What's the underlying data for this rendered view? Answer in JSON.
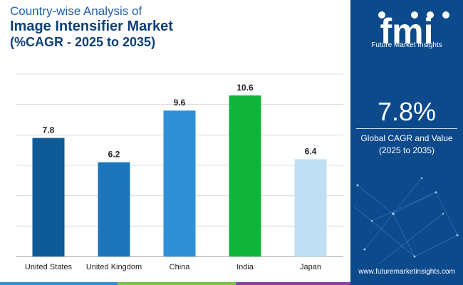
{
  "title": {
    "line1": "Country-wise Analysis of",
    "line2": "Image Intensifier Market",
    "line3": "(%CAGR - 2025 to 2035)"
  },
  "chart_data": {
    "type": "bar",
    "categories": [
      "United States",
      "United Kingdom",
      "China",
      "India",
      "Japan"
    ],
    "values": [
      7.8,
      6.2,
      9.6,
      10.6,
      6.4
    ],
    "bar_colors": [
      "#0e5a96",
      "#1b75b8",
      "#2f90d6",
      "#12b33a",
      "#bfe0f3"
    ],
    "value_labels": [
      "7.8",
      "6.2",
      "9.6",
      "10.6",
      "6.4"
    ],
    "ylim": [
      0,
      12
    ],
    "gridlines": true,
    "title": "",
    "xlabel": "",
    "ylabel": ""
  },
  "panel": {
    "brand_letters": "fmi",
    "brand_name": "Future Market Insights",
    "cagr_value": "7.8%",
    "cagr_label_line1": "Global CAGR and Value",
    "cagr_label_line2": "(2025 to 2035)",
    "website": "www.futuremarketinsights.com",
    "background_color": "#0c4a8c"
  },
  "bottom_bar_colors": [
    "#2f90d6",
    "#7dc242",
    "#f5a623",
    "#8a3fa0"
  ]
}
